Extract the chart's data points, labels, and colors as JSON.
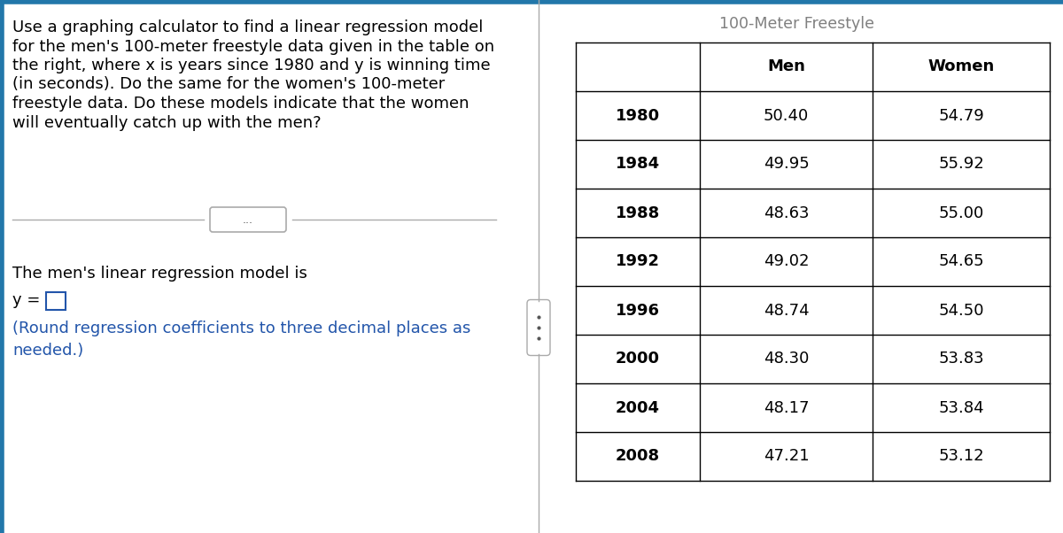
{
  "title_text": "100-Meter Freestyle",
  "table_title_color": "#808080",
  "years": [
    "1980",
    "1984",
    "1988",
    "1992",
    "1996",
    "2000",
    "2004",
    "2008"
  ],
  "men_times": [
    "50.40",
    "49.95",
    "48.63",
    "49.02",
    "48.74",
    "48.30",
    "48.17",
    "47.21"
  ],
  "women_times": [
    "54.79",
    "55.92",
    "55.00",
    "54.65",
    "54.50",
    "53.83",
    "53.84",
    "53.12"
  ],
  "left_text_lines": [
    "Use a graphing calculator to find a linear regression model",
    "for the men's 100-meter freestyle data given in the table on",
    "the right, where x is years since 1980 and y is winning time",
    "(in seconds). Do the same for the women's 100-meter",
    "freestyle data. Do these models indicate that the women",
    "will eventually catch up with the men?"
  ],
  "bottom_text_line1": "The men's linear regression model is",
  "bottom_text_line2_prefix": "y = ",
  "bottom_text_blue": "(Round regression coefficients to three decimal places as\nneeded.)",
  "bg_color": "#ffffff",
  "top_border_color": "#2277aa",
  "left_border_color": "#2277aa",
  "divider_line_color": "#aaaaaa",
  "table_border_color": "#000000",
  "text_color": "#000000",
  "blue_text_color": "#2255aa",
  "font_size_main": 13.0,
  "font_size_table": 13.0,
  "font_size_title": 12.5
}
